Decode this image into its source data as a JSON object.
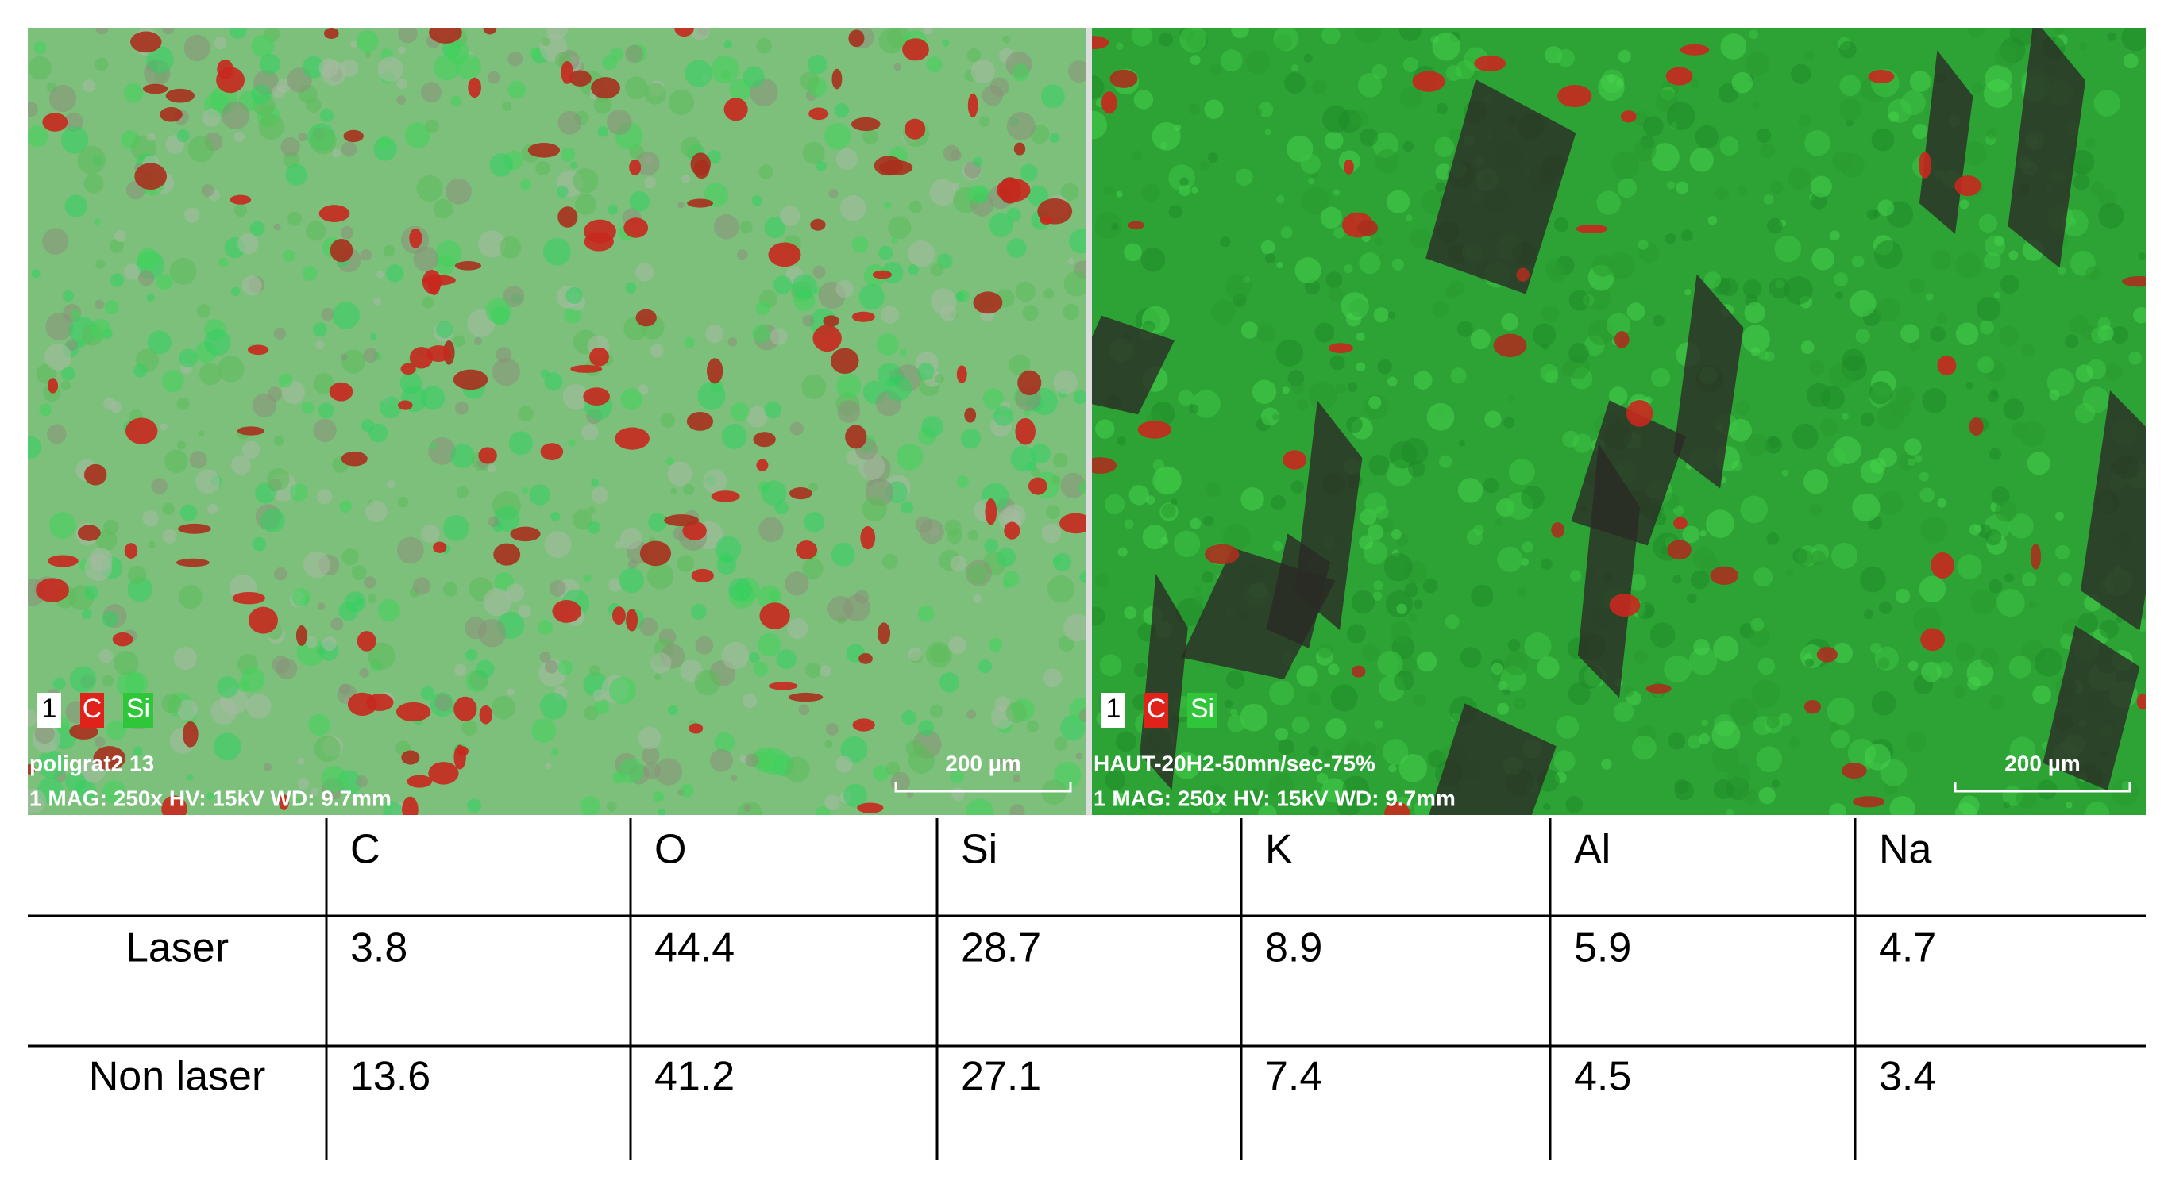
{
  "panels": [
    {
      "legend": [
        "1",
        "C",
        "Si"
      ],
      "sample": "poligrat2 13",
      "info": "1  MAG: 250x  HV: 15kV  WD: 9.7mm",
      "scale_bar": "200 µm"
    },
    {
      "legend": [
        "1",
        "C",
        "Si"
      ],
      "sample": "HAUT-20H2-50mn/sec-75%",
      "info": "1  MAG: 250x  HV: 15kV  WD: 9.7mm",
      "scale_bar": "200 µm"
    }
  ],
  "table": {
    "header": [
      "C",
      "O",
      "Si",
      "K",
      "Al",
      "Na"
    ],
    "rows": [
      {
        "label": "Laser",
        "values": [
          "3.8",
          "44.4",
          "28.7",
          "8.9",
          "5.9",
          "4.7"
        ]
      },
      {
        "label": "Non laser",
        "values": [
          "13.6",
          "41.2",
          "27.1",
          "7.4",
          "4.5",
          "3.4"
        ]
      }
    ]
  }
}
